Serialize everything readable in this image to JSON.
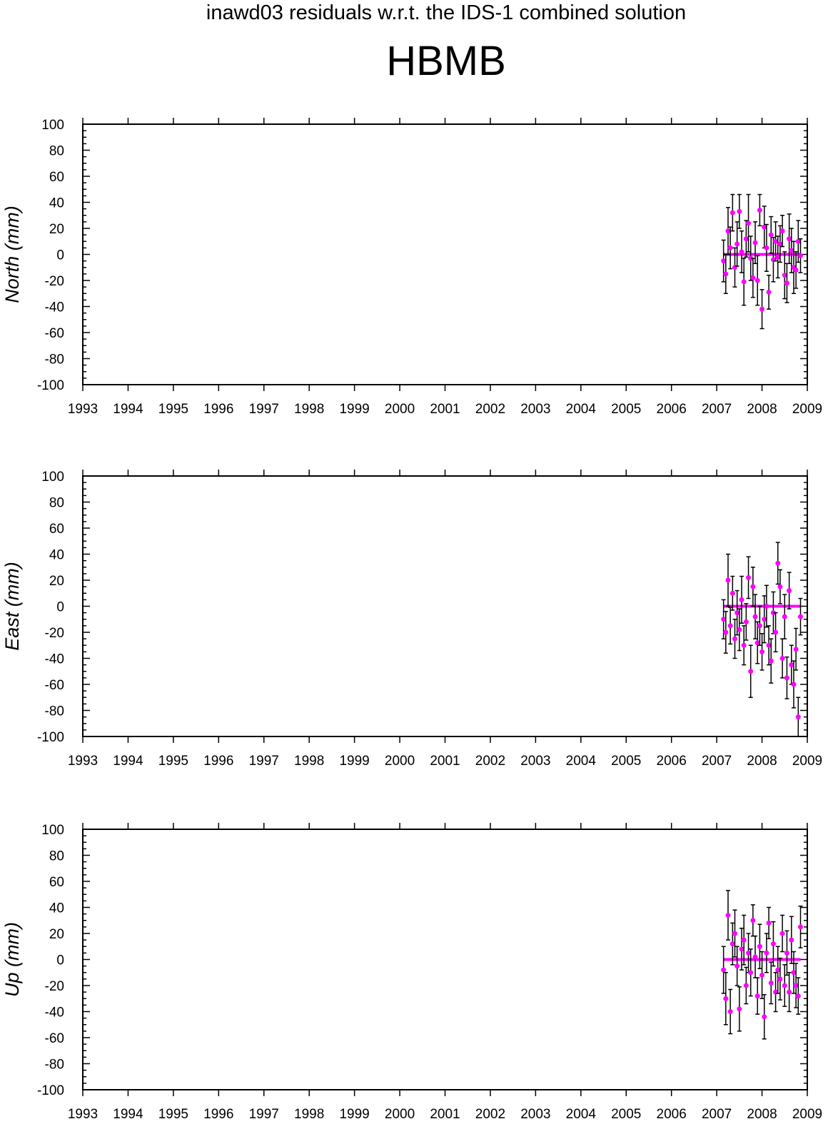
{
  "figure": {
    "title": "inawd03 residuals w.r.t. the IDS-1 combined solution",
    "station": "HBMB"
  },
  "colors": {
    "marker": "#ff00ff",
    "errorbar": "#000000",
    "axis": "#000000"
  },
  "chart_data": [
    {
      "type": "scatter",
      "ylabel": "North (mm)",
      "xlim": [
        1993,
        2009
      ],
      "ylim": [
        -100,
        100
      ],
      "xticks": [
        "1993",
        "1994",
        "1995",
        "1996",
        "1997",
        "1998",
        "1999",
        "2000",
        "2001",
        "2002",
        "2003",
        "2004",
        "2005",
        "2006",
        "2007",
        "2008",
        "2009"
      ],
      "yticks": [
        "100",
        "80",
        "60",
        "40",
        "20",
        "0",
        "-20",
        "-40",
        "-60",
        "-80",
        "-100"
      ],
      "zero_line": [
        2007.15,
        2008.85
      ],
      "series": [
        {
          "x": [
            2007.15,
            2007.2,
            2007.25,
            2007.3,
            2007.35,
            2007.4,
            2007.45,
            2007.5,
            2007.55,
            2007.6,
            2007.65,
            2007.7,
            2007.75,
            2007.8,
            2007.85,
            2007.9,
            2007.95,
            2008.0,
            2008.05,
            2008.1,
            2008.15,
            2008.2,
            2008.25,
            2008.3,
            2008.35,
            2008.4,
            2008.45,
            2008.5,
            2008.55,
            2008.6,
            2008.65,
            2008.7,
            2008.75,
            2008.8,
            2008.85
          ],
          "y": [
            -5,
            -15,
            18,
            5,
            32,
            -10,
            8,
            33,
            2,
            -21,
            12,
            24,
            -3,
            -18,
            9,
            -20,
            34,
            -42,
            21,
            5,
            -29,
            15,
            -4,
            10,
            -2,
            8,
            18,
            -16,
            -22,
            12,
            3,
            -10,
            -12,
            10,
            -1
          ],
          "err": [
            16,
            15,
            18,
            16,
            14,
            15,
            17,
            13,
            16,
            18,
            14,
            22,
            17,
            15,
            16,
            19,
            12,
            15,
            16,
            18,
            13,
            14,
            17,
            15,
            16,
            14,
            12,
            18,
            15,
            19,
            17,
            20,
            14,
            16,
            13
          ]
        }
      ]
    },
    {
      "type": "scatter",
      "ylabel": "East (mm)",
      "xlim": [
        1993,
        2009
      ],
      "ylim": [
        -100,
        100
      ],
      "xticks": [
        "1993",
        "1994",
        "1995",
        "1996",
        "1997",
        "1998",
        "1999",
        "2000",
        "2001",
        "2002",
        "2003",
        "2004",
        "2005",
        "2006",
        "2007",
        "2008",
        "2009"
      ],
      "yticks": [
        "100",
        "80",
        "60",
        "40",
        "20",
        "0",
        "-20",
        "-40",
        "-60",
        "-80",
        "-100"
      ],
      "zero_line": [
        2007.15,
        2008.85
      ],
      "series": [
        {
          "x": [
            2007.15,
            2007.2,
            2007.25,
            2007.3,
            2007.35,
            2007.4,
            2007.45,
            2007.5,
            2007.55,
            2007.6,
            2007.65,
            2007.7,
            2007.75,
            2007.8,
            2007.85,
            2007.9,
            2007.95,
            2008.0,
            2008.05,
            2008.1,
            2008.15,
            2008.2,
            2008.25,
            2008.3,
            2008.35,
            2008.4,
            2008.45,
            2008.5,
            2008.55,
            2008.6,
            2008.65,
            2008.7,
            2008.75,
            2008.8,
            2008.85
          ],
          "y": [
            -10,
            -20,
            20,
            -15,
            10,
            -25,
            -5,
            -18,
            5,
            -30,
            -12,
            22,
            -50,
            15,
            -8,
            -28,
            -15,
            -35,
            -10,
            0,
            -30,
            -42,
            -5,
            -20,
            33,
            15,
            -40,
            -8,
            -55,
            12,
            -45,
            -60,
            -33,
            -85,
            -8
          ],
          "err": [
            15,
            16,
            20,
            14,
            13,
            15,
            17,
            16,
            18,
            15,
            14,
            16,
            20,
            15,
            17,
            16,
            15,
            14,
            18,
            16,
            15,
            17,
            16,
            15,
            16,
            13,
            15,
            17,
            16,
            14,
            15,
            18,
            16,
            15,
            14
          ]
        }
      ]
    },
    {
      "type": "scatter",
      "ylabel": "Up (mm)",
      "xlim": [
        1993,
        2009
      ],
      "ylim": [
        -100,
        100
      ],
      "xticks": [
        "1993",
        "1994",
        "1995",
        "1996",
        "1997",
        "1998",
        "1999",
        "2000",
        "2001",
        "2002",
        "2003",
        "2004",
        "2005",
        "2006",
        "2007",
        "2008",
        "2009"
      ],
      "yticks": [
        "100",
        "80",
        "60",
        "40",
        "20",
        "0",
        "-20",
        "-40",
        "-60",
        "-80",
        "-100"
      ],
      "zero_line": [
        2007.15,
        2008.85
      ],
      "series": [
        {
          "x": [
            2007.15,
            2007.2,
            2007.25,
            2007.3,
            2007.35,
            2007.4,
            2007.45,
            2007.5,
            2007.55,
            2007.6,
            2007.65,
            2007.7,
            2007.75,
            2007.8,
            2007.85,
            2007.9,
            2007.95,
            2008.0,
            2008.05,
            2008.1,
            2008.15,
            2008.2,
            2008.25,
            2008.3,
            2008.35,
            2008.4,
            2008.45,
            2008.5,
            2008.55,
            2008.6,
            2008.65,
            2008.7,
            2008.75,
            2008.8,
            2008.85
          ],
          "y": [
            -8,
            -30,
            34,
            -40,
            12,
            20,
            -5,
            -38,
            8,
            15,
            -20,
            5,
            -10,
            30,
            2,
            -28,
            10,
            -12,
            -44,
            5,
            28,
            -18,
            12,
            -25,
            -8,
            -15,
            20,
            -20,
            5,
            -25,
            15,
            -10,
            -20,
            -28,
            25
          ],
          "err": [
            18,
            20,
            19,
            17,
            16,
            18,
            15,
            17,
            16,
            19,
            14,
            15,
            18,
            12,
            16,
            14,
            17,
            18,
            17,
            15,
            12,
            16,
            17,
            15,
            18,
            16,
            14,
            16,
            17,
            15,
            18,
            16,
            17,
            14,
            16
          ]
        }
      ]
    }
  ]
}
